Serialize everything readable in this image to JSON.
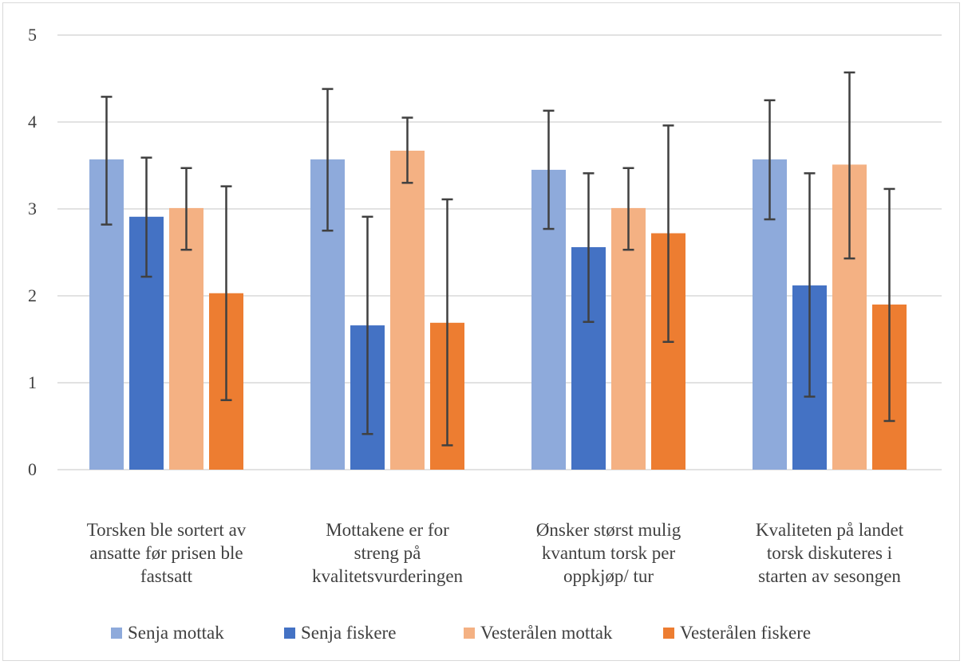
{
  "chart_data": {
    "type": "bar",
    "title": "",
    "xlabel": "",
    "ylabel": "",
    "ylim": [
      0,
      5
    ],
    "yticks": [
      "0",
      "1",
      "2",
      "3",
      "4",
      "5"
    ],
    "grid": true,
    "legend_position": "bottom",
    "categories": [
      [
        "Torsken ble sortert av",
        "ansatte før prisen ble",
        "fastsatt"
      ],
      [
        "Mottakene er for",
        "streng på",
        "kvalitetsvurderingen"
      ],
      [
        "Ønsker størst mulig",
        "kvantum torsk per",
        "oppkjøp/ tur"
      ],
      [
        "Kvaliteten på landet",
        "torsk  diskuteres i",
        "starten av sesongen"
      ]
    ],
    "series": [
      {
        "name": "Senja mottak",
        "color": "#8eaadb",
        "values": [
          3.57,
          3.57,
          3.45,
          3.57
        ],
        "error_low": [
          2.82,
          2.75,
          2.77,
          2.88
        ],
        "error_high": [
          4.29,
          4.38,
          4.13,
          4.25
        ]
      },
      {
        "name": "Senja fiskere",
        "color": "#4472c4",
        "values": [
          2.91,
          1.66,
          2.56,
          2.12
        ],
        "error_low": [
          2.22,
          0.41,
          1.7,
          0.84
        ],
        "error_high": [
          3.59,
          2.91,
          3.41,
          3.41
        ]
      },
      {
        "name": "Vesterålen mottak",
        "color": "#f4b183",
        "values": [
          3.01,
          3.67,
          3.01,
          3.51
        ],
        "error_low": [
          2.53,
          3.3,
          2.53,
          2.43
        ],
        "error_high": [
          3.47,
          4.05,
          3.47,
          4.57
        ]
      },
      {
        "name": "Vesterålen fiskere",
        "color": "#ed7d31",
        "values": [
          2.03,
          1.69,
          2.72,
          1.9
        ],
        "error_low": [
          0.8,
          0.28,
          1.47,
          0.56
        ],
        "error_high": [
          3.26,
          3.11,
          3.96,
          3.23
        ]
      }
    ]
  }
}
